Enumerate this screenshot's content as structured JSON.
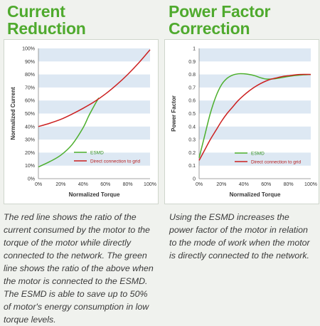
{
  "panels": [
    {
      "heading_line1": "Current",
      "heading_line2": "Reduction",
      "caption": "The red line shows the ratio of the current consumed by the motor to the torque of the motor while directly connected to the network. The green line shows the ratio of the above when the motor is connected to the ESMD. The ESMD is able to save up to 50% of motor's energy consumption in low torque levels."
    },
    {
      "heading_line1": "Power Factor",
      "heading_line2": "Correction",
      "caption": "Using the ESMD increases the power factor of the motor in relation to the mode of work when the motor is directly connected to the network."
    }
  ],
  "chart_data": [
    {
      "type": "line",
      "xlabel": "Normalized Torque",
      "ylabel": "Normalized Current",
      "xlim": [
        0,
        100
      ],
      "ylim": [
        0,
        100
      ],
      "x_ticks": [
        "0%",
        "20%",
        "40%",
        "60%",
        "80%",
        "100%"
      ],
      "y_ticks": [
        "0%",
        "10%",
        "20%",
        "30%",
        "40%",
        "50%",
        "60%",
        "70%",
        "80%",
        "90%",
        "100%"
      ],
      "grid": "horizontal bands",
      "legend_position": "lower-right",
      "series": [
        {
          "name": "ESMD",
          "color": "#4caf2c",
          "x": [
            0,
            10,
            20,
            30,
            40,
            45,
            50,
            54
          ],
          "y": [
            9,
            13,
            18,
            26,
            39,
            48,
            56,
            62
          ]
        },
        {
          "name": "Direct connection to grid",
          "color": "#cc2020",
          "x": [
            0,
            10,
            20,
            30,
            40,
            50,
            60,
            70,
            80,
            90,
            100
          ],
          "y": [
            40,
            42.5,
            45.5,
            49.5,
            54,
            59,
            65,
            72,
            80,
            89,
            99
          ]
        }
      ]
    },
    {
      "type": "line",
      "xlabel": "Normalized Torque",
      "ylabel": "Power Factor",
      "xlim": [
        0,
        100
      ],
      "ylim": [
        0,
        1
      ],
      "x_ticks": [
        "0%",
        "20%",
        "40%",
        "60%",
        "80%",
        "100%"
      ],
      "y_ticks": [
        "0",
        "0.1",
        "0.2",
        "0.3",
        "0.4",
        "0.5",
        "0.6",
        "0.7",
        "0.8",
        "0.9",
        "1"
      ],
      "grid": "horizontal bands",
      "legend_position": "lower-right",
      "series": [
        {
          "name": "ESMD",
          "color": "#4caf2c",
          "x": [
            0,
            5,
            10,
            15,
            20,
            25,
            30,
            35,
            40,
            45,
            50,
            55,
            60,
            65,
            70,
            80,
            90,
            100
          ],
          "y": [
            0.16,
            0.33,
            0.5,
            0.63,
            0.72,
            0.77,
            0.795,
            0.805,
            0.805,
            0.8,
            0.79,
            0.775,
            0.765,
            0.765,
            0.77,
            0.785,
            0.795,
            0.8
          ]
        },
        {
          "name": "Direct connection to grid",
          "color": "#cc2020",
          "x": [
            0,
            5,
            10,
            15,
            20,
            25,
            30,
            35,
            40,
            45,
            50,
            55,
            60,
            65,
            70,
            75,
            80,
            90,
            100
          ],
          "y": [
            0.14,
            0.22,
            0.3,
            0.37,
            0.44,
            0.5,
            0.55,
            0.6,
            0.64,
            0.675,
            0.705,
            0.73,
            0.75,
            0.765,
            0.775,
            0.785,
            0.79,
            0.8,
            0.8
          ]
        }
      ]
    }
  ]
}
